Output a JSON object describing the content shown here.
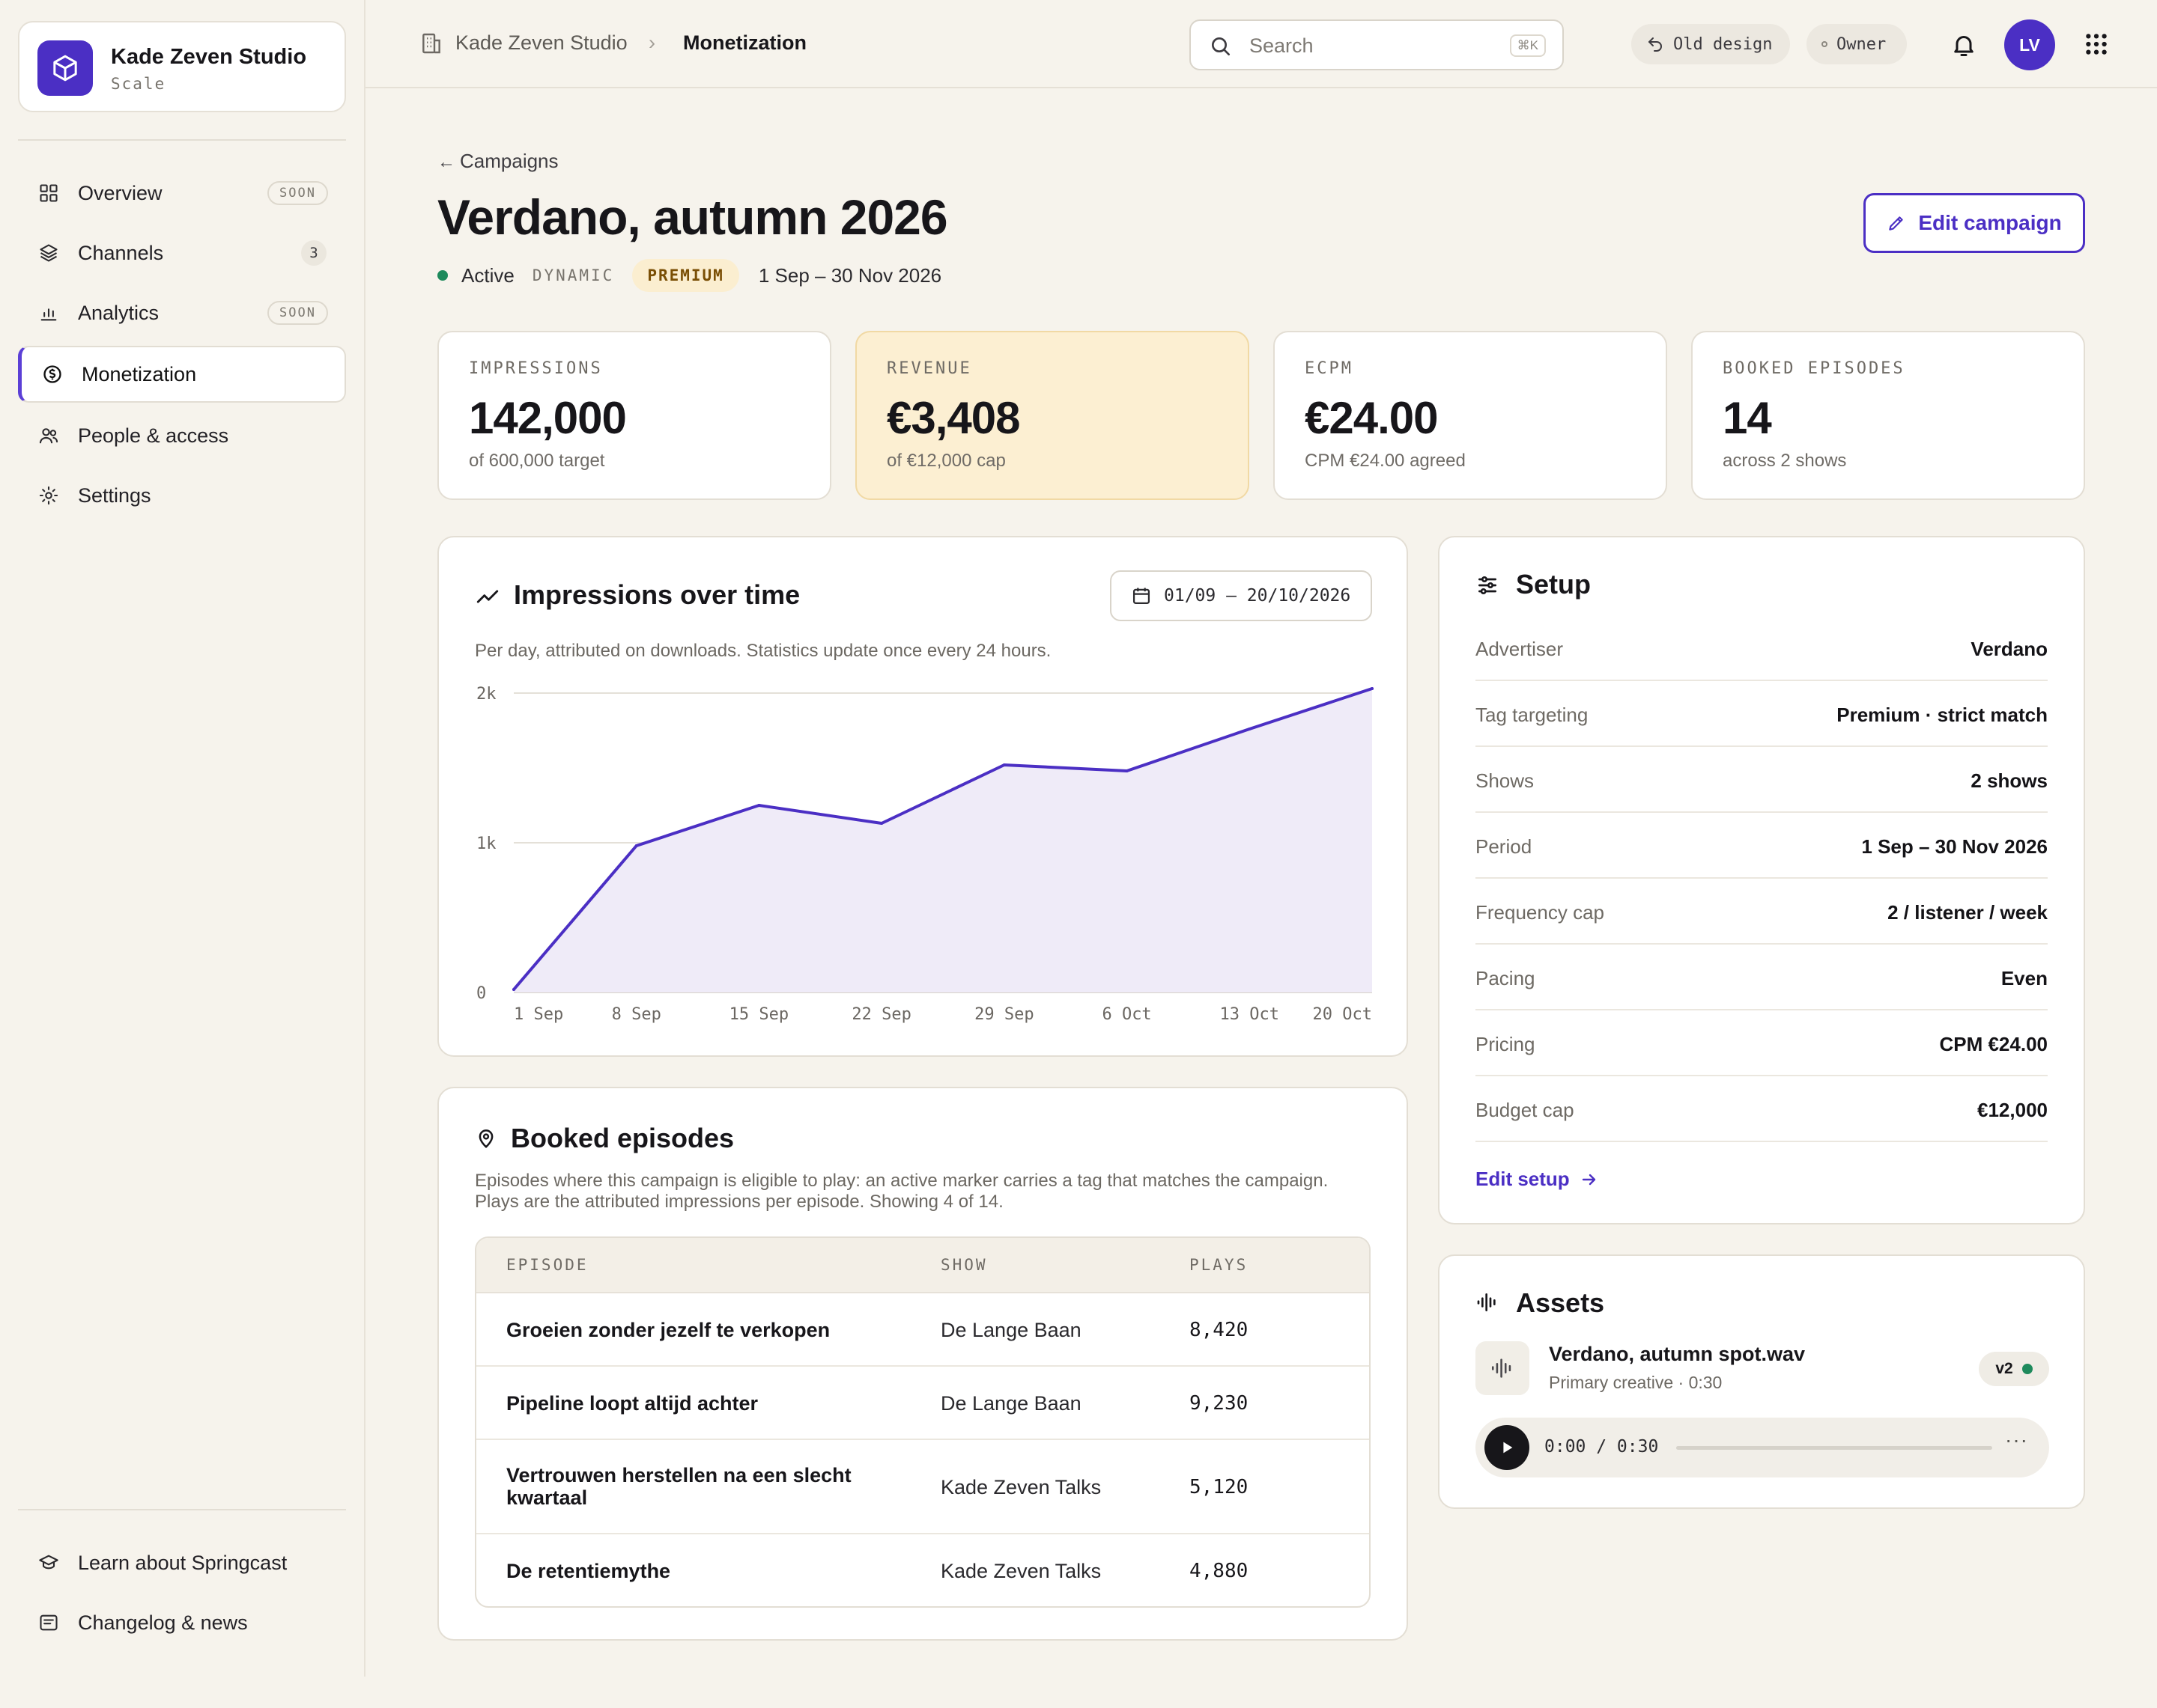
{
  "org": {
    "name": "Kade Zeven Studio",
    "plan": "Scale"
  },
  "nav": {
    "items": [
      {
        "label": "Overview",
        "badge": "SOON"
      },
      {
        "label": "Channels",
        "count": "3"
      },
      {
        "label": "Analytics",
        "badge": "SOON"
      },
      {
        "label": "Monetization"
      },
      {
        "label": "People & access"
      },
      {
        "label": "Settings"
      }
    ],
    "footer": [
      {
        "label": "Learn about Springcast"
      },
      {
        "label": "Changelog & news"
      }
    ]
  },
  "topbar": {
    "breadcrumb_org": "Kade Zeven Studio",
    "breadcrumb_current": "Monetization",
    "search_placeholder": "Search",
    "search_shortcut": "⌘K",
    "old_design": "Old design",
    "role": "Owner",
    "avatar_initials": "LV"
  },
  "header": {
    "back": "Campaigns",
    "title": "Verdano, autumn 2026",
    "status": "Active",
    "type": "DYNAMIC",
    "tier": "PREMIUM",
    "period": "1 Sep – 30 Nov 2026",
    "edit_label": "Edit campaign"
  },
  "stats": [
    {
      "label": "IMPRESSIONS",
      "value": "142,000",
      "sub": "of 600,000 target"
    },
    {
      "label": "REVENUE",
      "value": "€3,408",
      "sub": "of €12,000 cap"
    },
    {
      "label": "ECPM",
      "value": "€24.00",
      "sub": "CPM €24.00 agreed"
    },
    {
      "label": "BOOKED EPISODES",
      "value": "14",
      "sub": "across 2 shows"
    }
  ],
  "impressions": {
    "title": "Impressions over time",
    "range": "01/09 — 20/10/2026",
    "description": "Per day, attributed on downloads. Statistics update once every 24 hours."
  },
  "chart_data": {
    "type": "area",
    "x": [
      "1 Sep",
      "8 Sep",
      "15 Sep",
      "22 Sep",
      "29 Sep",
      "6 Oct",
      "13 Oct",
      "20 Oct"
    ],
    "series": [
      {
        "values": [
          20,
          980,
          1250,
          1130,
          1520,
          1480,
          1760,
          2030
        ]
      }
    ],
    "y_ticks": [
      "2k",
      "1k",
      "0"
    ],
    "ylim": [
      0,
      2000
    ],
    "grid": true,
    "color": "#4b2fc4"
  },
  "setup": {
    "title": "Setup",
    "rows": [
      {
        "key": "Advertiser",
        "value": "Verdano"
      },
      {
        "key": "Tag targeting",
        "value": "Premium · strict match"
      },
      {
        "key": "Shows",
        "value": "2 shows"
      },
      {
        "key": "Period",
        "value": "1 Sep – 30 Nov 2026"
      },
      {
        "key": "Frequency cap",
        "value": "2 / listener / week"
      },
      {
        "key": "Pacing",
        "value": "Even"
      },
      {
        "key": "Pricing",
        "value": "CPM €24.00"
      },
      {
        "key": "Budget cap",
        "value": "€12,000"
      }
    ],
    "edit_link": "Edit setup"
  },
  "episodes": {
    "title": "Booked episodes",
    "description_1": "Episodes where this campaign is eligible to play: an active marker carries a tag that matches the campaign.",
    "description_2": "Plays are the attributed impressions per episode. Showing 4 of 14.",
    "columns": [
      "EPISODE",
      "SHOW",
      "PLAYS"
    ],
    "rows": [
      {
        "episode": "Groeien zonder jezelf te verkopen",
        "show": "De Lange Baan",
        "plays": "8,420"
      },
      {
        "episode": "Pipeline loopt altijd achter",
        "show": "De Lange Baan",
        "plays": "9,230"
      },
      {
        "episode": "Vertrouwen herstellen na een slecht kwartaal",
        "show": "Kade Zeven Talks",
        "plays": "5,120"
      },
      {
        "episode": "De retentiemythe",
        "show": "Kade Zeven Talks",
        "plays": "4,880"
      }
    ]
  },
  "assets": {
    "title": "Assets",
    "file_name": "Verdano, autumn spot.wav",
    "file_meta": "Primary creative · 0:30",
    "version": "v2",
    "time": "0:00 / 0:30"
  },
  "colors": {
    "accent": "#4b2fc4",
    "status_green": "#1e8a5c",
    "premium_bg": "#fbeed0",
    "background": "#f6f3ec"
  }
}
